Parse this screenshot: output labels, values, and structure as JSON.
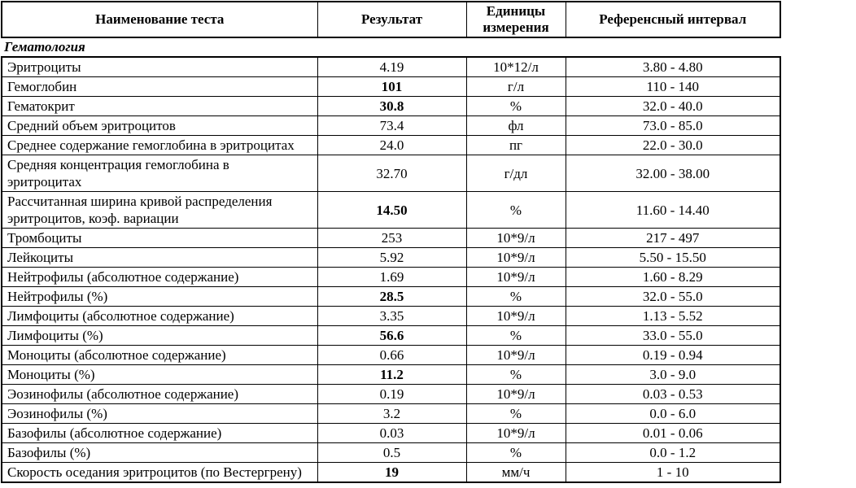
{
  "table": {
    "columns": [
      {
        "label": "Наименование теста"
      },
      {
        "label": "Результат"
      },
      {
        "label": "Единицы измерения"
      },
      {
        "label": "Референсный интервал"
      }
    ],
    "section": {
      "label": "Гематология"
    },
    "rows": [
      {
        "name": "Эритроциты",
        "result": "4.19",
        "result_bold": false,
        "units": "10*12/л",
        "ref": "3.80 - 4.80"
      },
      {
        "name": "Гемоглобин",
        "result": "101",
        "result_bold": true,
        "units": "г/л",
        "ref": "110 - 140"
      },
      {
        "name": "Гематокрит",
        "result": "30.8",
        "result_bold": true,
        "units": "%",
        "ref": "32.0 - 40.0"
      },
      {
        "name": "Средний объем эритроцитов",
        "result": "73.4",
        "result_bold": false,
        "units": "фл",
        "ref": "73.0 - 85.0"
      },
      {
        "name": "Среднее содержание гемоглобина в эритроцитах",
        "result": "24.0",
        "result_bold": false,
        "units": "пг",
        "ref": "22.0 - 30.0"
      },
      {
        "name": "Средняя концентрация гемоглобина в\nэритроцитах",
        "result": "32.70",
        "result_bold": false,
        "units": "г/дл",
        "ref": "32.00 - 38.00"
      },
      {
        "name": "Рассчитанная ширина кривой распределения\nэритроцитов, коэф. вариации",
        "result": "14.50",
        "result_bold": true,
        "units": "%",
        "ref": "11.60 - 14.40"
      },
      {
        "name": "Тромбоциты",
        "result": "253",
        "result_bold": false,
        "units": "10*9/л",
        "ref": "217 - 497"
      },
      {
        "name": "Лейкоциты",
        "result": "5.92",
        "result_bold": false,
        "units": "10*9/л",
        "ref": "5.50 - 15.50"
      },
      {
        "name": "Нейтрофилы (абсолютное содержание)",
        "result": "1.69",
        "result_bold": false,
        "units": "10*9/л",
        "ref": "1.60 - 8.29"
      },
      {
        "name": "Нейтрофилы (%)",
        "result": "28.5",
        "result_bold": true,
        "units": "%",
        "ref": "32.0 - 55.0"
      },
      {
        "name": "Лимфоциты (абсолютное содержание)",
        "result": "3.35",
        "result_bold": false,
        "units": "10*9/л",
        "ref": "1.13 - 5.52"
      },
      {
        "name": "Лимфоциты (%)",
        "result": "56.6",
        "result_bold": true,
        "units": "%",
        "ref": "33.0 - 55.0"
      },
      {
        "name": "Моноциты (абсолютное содержание)",
        "result": "0.66",
        "result_bold": false,
        "units": "10*9/л",
        "ref": "0.19 - 0.94"
      },
      {
        "name": "Моноциты (%)",
        "result": "11.2",
        "result_bold": true,
        "units": "%",
        "ref": "3.0 - 9.0"
      },
      {
        "name": "Эозинофилы (абсолютное содержание)",
        "result": "0.19",
        "result_bold": false,
        "units": "10*9/л",
        "ref": "0.03 - 0.53"
      },
      {
        "name": "Эозинофилы (%)",
        "result": "3.2",
        "result_bold": false,
        "units": "%",
        "ref": "0.0 - 6.0"
      },
      {
        "name": "Базофилы (абсолютное содержание)",
        "result": "0.03",
        "result_bold": false,
        "units": "10*9/л",
        "ref": "0.01 - 0.06"
      },
      {
        "name": "Базофилы (%)",
        "result": "0.5",
        "result_bold": false,
        "units": "%",
        "ref": "0.0 - 1.2"
      },
      {
        "name": "Скорость оседания эритроцитов (по Вестергрену)",
        "result": "19",
        "result_bold": true,
        "units": "мм/ч",
        "ref": "1 - 10"
      }
    ]
  }
}
